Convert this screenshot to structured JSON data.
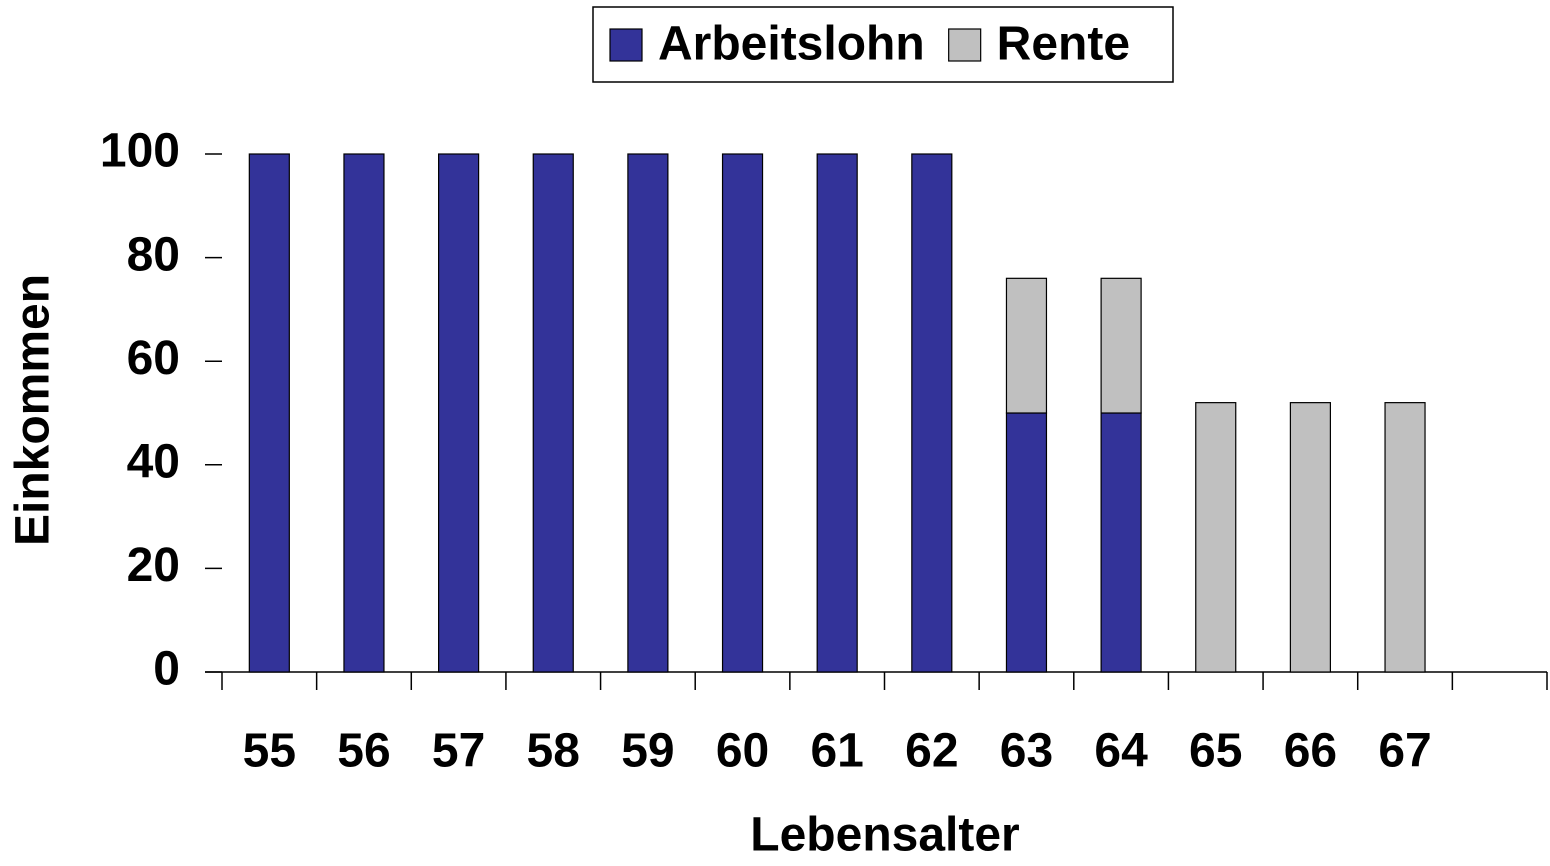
{
  "chart_data": {
    "type": "stacked_bar",
    "categories": [
      "55",
      "56",
      "57",
      "58",
      "59",
      "60",
      "61",
      "62",
      "63",
      "64",
      "65",
      "66",
      "67",
      null
    ],
    "series": [
      {
        "name": "Arbeitslohn",
        "color": "#333399",
        "values": [
          100,
          100,
          100,
          100,
          100,
          100,
          100,
          100,
          50,
          50,
          0,
          0,
          0,
          null
        ]
      },
      {
        "name": "Rente",
        "color": "#c0c0c0",
        "values": [
          0,
          0,
          0,
          0,
          0,
          0,
          0,
          0,
          26,
          26,
          52,
          52,
          52,
          null
        ]
      }
    ],
    "x_label": "Lebensalter",
    "y_label": "Einkommen",
    "ylim": [
      0,
      100
    ],
    "yticks": [
      0,
      20,
      40,
      60,
      80,
      100
    ],
    "grid": false,
    "legend": "top"
  }
}
